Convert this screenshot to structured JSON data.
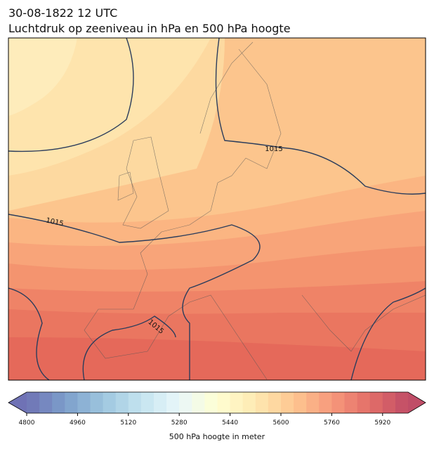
{
  "header": {
    "date": "30-08-1822 12 UTC",
    "title": "Luchtdruk op zeeniveau in hPa en 500 hPa hoogte"
  },
  "map": {
    "contour_labels": [
      1015,
      1015,
      1015
    ]
  },
  "colorbar": {
    "label": "500 hPa hoogte in meter",
    "lim": [
      4800,
      6000
    ],
    "ticks": [
      4800,
      4960,
      5120,
      5280,
      5440,
      5600,
      5760,
      5920
    ]
  }
}
